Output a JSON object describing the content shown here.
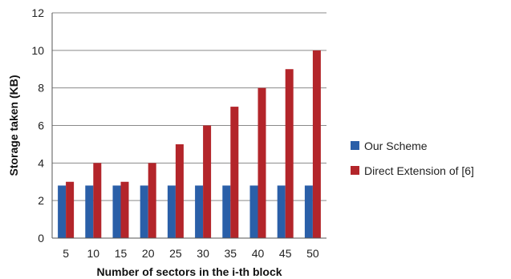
{
  "chart_data": {
    "type": "bar",
    "categories": [
      "5",
      "10",
      "15",
      "20",
      "25",
      "30",
      "35",
      "40",
      "45",
      "50"
    ],
    "series": [
      {
        "name": "Our Scheme",
        "color": "#2a5fa8",
        "values": [
          2.8,
          2.8,
          2.8,
          2.8,
          2.8,
          2.8,
          2.8,
          2.8,
          2.8,
          2.8
        ]
      },
      {
        "name": "Direct Extension of [6]",
        "color": "#b3252a",
        "values": [
          3,
          4,
          3,
          4,
          5,
          6,
          7,
          8,
          9,
          10
        ]
      }
    ],
    "xlabel": "Number of sectors in the i-th block",
    "ylabel": "Storage taken (KB)",
    "ylim": [
      0,
      12
    ],
    "yticks": [
      0,
      2,
      4,
      6,
      8,
      10,
      12
    ],
    "grid": true,
    "legend_position": "right"
  }
}
